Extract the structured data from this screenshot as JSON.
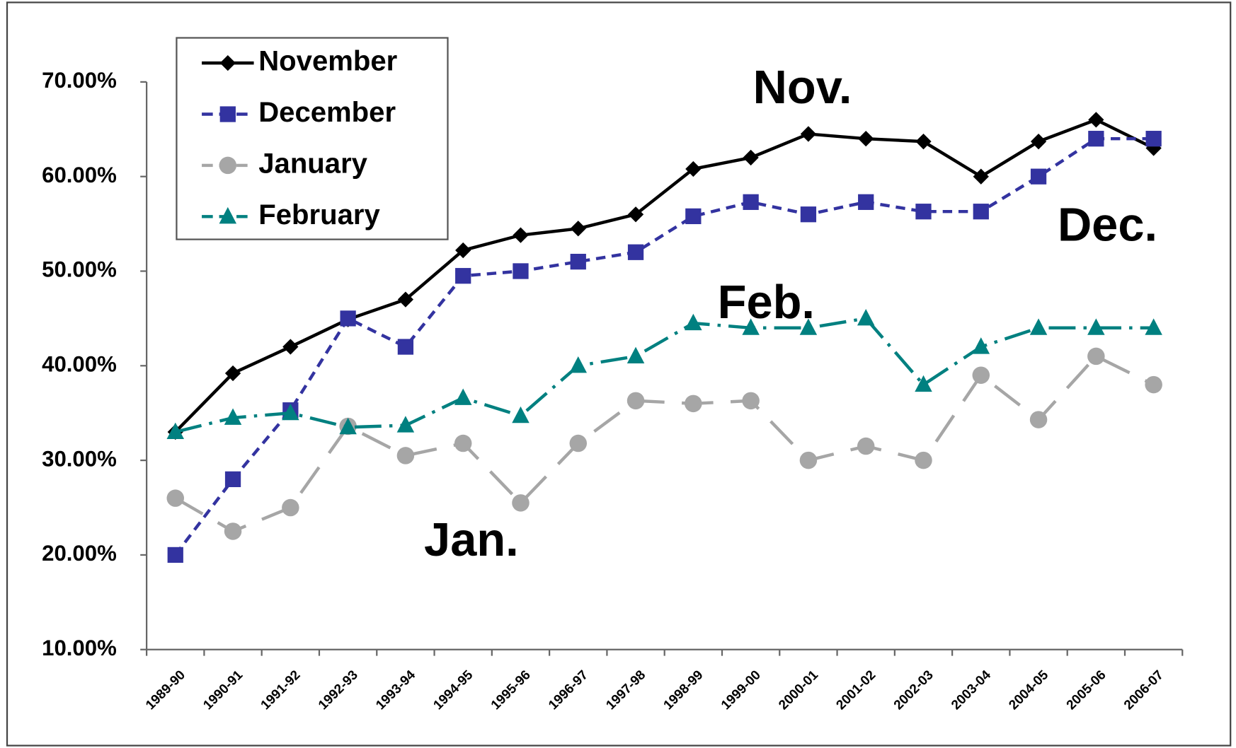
{
  "chart_data": {
    "type": "line",
    "categories": [
      "1989-90",
      "1990-91",
      "1991-92",
      "1992-93",
      "1993-94",
      "1994-95",
      "1995-96",
      "1996-97",
      "1997-98",
      "1998-99",
      "1999-00",
      "2000-01",
      "2001-02",
      "2002-03",
      "2003-04",
      "2004-05",
      "2005-06",
      "2006-07"
    ],
    "series": [
      {
        "name": "November",
        "color": "#000000",
        "marker": "diamond",
        "values": [
          33,
          39.2,
          42,
          44.9,
          47,
          52.2,
          53.8,
          54.5,
          56,
          60.8,
          62,
          64.5,
          64,
          63.7,
          60,
          63.7,
          66,
          63
        ]
      },
      {
        "name": "December",
        "color": "#3333a0",
        "marker": "square",
        "values": [
          20,
          28,
          35.3,
          45,
          42,
          49.5,
          50,
          51,
          52,
          55.8,
          57.3,
          56,
          57.3,
          56.3,
          56.3,
          60,
          64,
          64
        ]
      },
      {
        "name": "January",
        "color": "#a6a6a6",
        "marker": "circle",
        "values": [
          26,
          22.5,
          25,
          33.6,
          30.5,
          31.8,
          25.5,
          31.8,
          36.3,
          36,
          36.3,
          30,
          31.5,
          30,
          39,
          34.3,
          41,
          38
        ]
      },
      {
        "name": "February",
        "color": "#008080",
        "marker": "triangle",
        "values": [
          33,
          34.5,
          35,
          33.5,
          33.7,
          36.6,
          34.7,
          40,
          41,
          44.5,
          44,
          44,
          45,
          38,
          42,
          44,
          44,
          44
        ]
      }
    ],
    "annotations": [
      "Nov.",
      "Dec.",
      "Feb.",
      "Jan."
    ],
    "ylim": [
      10,
      70
    ],
    "yticks": [
      {
        "value": 10,
        "label": "10.00%"
      },
      {
        "value": 20,
        "label": "20.00%"
      },
      {
        "value": 30,
        "label": "30.00%"
      },
      {
        "value": 40,
        "label": "40.00%"
      },
      {
        "value": 50,
        "label": "50.00%"
      },
      {
        "value": 60,
        "label": "60.00%"
      },
      {
        "value": 70,
        "label": "70.00%"
      }
    ],
    "grid": false,
    "legend": "upper left"
  }
}
